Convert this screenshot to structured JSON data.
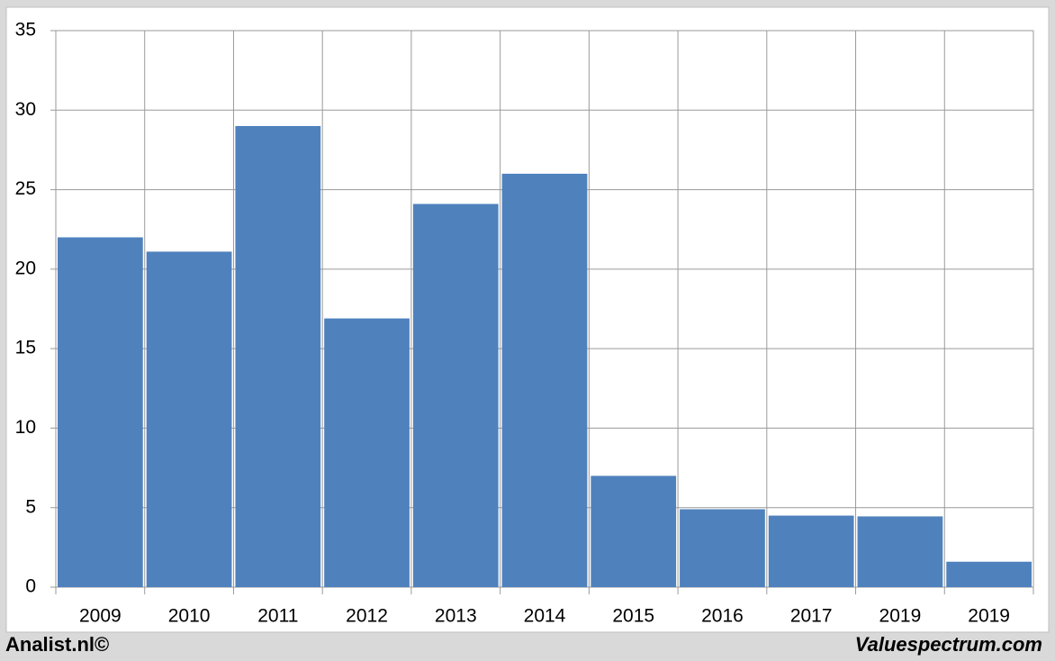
{
  "chart_data": {
    "type": "bar",
    "categories": [
      "2009",
      "2010",
      "2011",
      "2012",
      "2013",
      "2014",
      "2015",
      "2016",
      "2017",
      "2019",
      "2019"
    ],
    "values": [
      22,
      21.1,
      29,
      16.9,
      24.1,
      26,
      7,
      4.9,
      4.5,
      4.45,
      1.6
    ],
    "color": "#4f81bd",
    "ylim": [
      0,
      35
    ],
    "yticks": [
      0,
      5,
      10,
      15,
      20,
      25,
      30,
      35
    ],
    "grid": true,
    "footer_left": "Analist.nl©",
    "footer_right": "Valuespectrum.com"
  }
}
